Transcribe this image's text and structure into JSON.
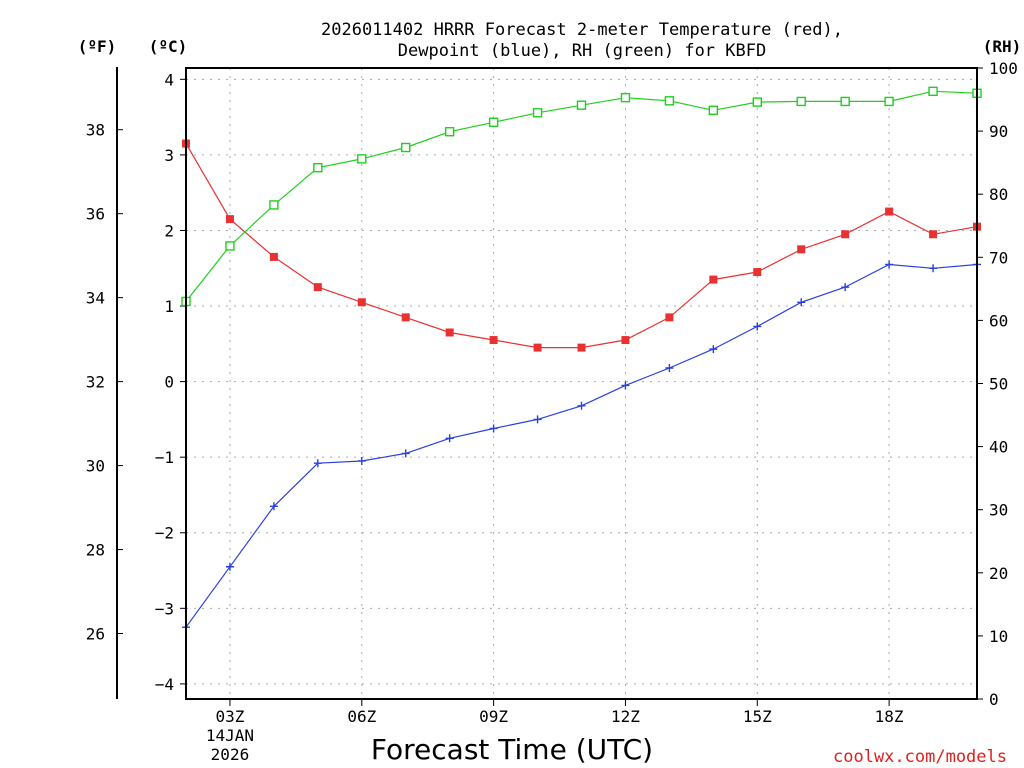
{
  "chart_data": {
    "type": "line",
    "title_line1": "2026011402 HRRR Forecast 2-meter Temperature (red),",
    "title_line2": "Dewpoint (blue), RH (green) for KBFD",
    "unit_f": "(ºF)",
    "unit_c": "(ºC)",
    "unit_rh": "(RH)",
    "xlabel": "Forecast Time (UTC)",
    "credit": "coolwx.com/models",
    "x_hours": [
      2,
      3,
      4,
      5,
      6,
      7,
      8,
      9,
      10,
      11,
      12,
      13,
      14,
      15,
      16,
      17,
      18,
      19,
      20
    ],
    "xlim": [
      2,
      20
    ],
    "x_ticks": [
      {
        "hour": 3,
        "label": "03Z",
        "date1": "14JAN",
        "date2": "2026"
      },
      {
        "hour": 6,
        "label": "06Z"
      },
      {
        "hour": 9,
        "label": "09Z"
      },
      {
        "hour": 12,
        "label": "12Z"
      },
      {
        "hour": 15,
        "label": "15Z"
      },
      {
        "hour": 18,
        "label": "18Z"
      }
    ],
    "ylim_c": [
      -4.2,
      4.15
    ],
    "ylim_rh": [
      0,
      100
    ],
    "c_ticks": [
      -4,
      -3,
      -2,
      -1,
      0,
      1,
      2,
      3,
      4
    ],
    "f_ticks": [
      26,
      28,
      30,
      32,
      34,
      36,
      38
    ],
    "rh_ticks": [
      0,
      10,
      20,
      30,
      40,
      50,
      60,
      70,
      80,
      90,
      100
    ],
    "series": [
      {
        "name": "Temperature",
        "color": "#e83232",
        "marker": "filled-square",
        "values": [
          3.15,
          2.15,
          1.65,
          1.25,
          1.05,
          0.85,
          0.65,
          0.55,
          0.45,
          0.45,
          0.55,
          0.85,
          1.35,
          1.45,
          1.75,
          1.95,
          2.25,
          1.95,
          2.05
        ]
      },
      {
        "name": "Dewpoint",
        "color": "#2a3fe0",
        "marker": "plus",
        "values": [
          -3.25,
          -2.45,
          -1.65,
          -1.08,
          -1.05,
          -0.95,
          -0.75,
          -0.62,
          -0.5,
          -0.32,
          -0.05,
          0.18,
          0.43,
          0.73,
          1.05,
          1.25,
          1.55,
          1.5,
          1.55
        ]
      },
      {
        "name": "RH",
        "color": "#1ed01e",
        "marker": "open-square",
        "axis": "rh",
        "values": [
          63,
          71.8,
          78.3,
          84.2,
          85.6,
          87.4,
          89.9,
          91.4,
          92.9,
          94.1,
          95.3,
          94.8,
          93.3,
          94.6,
          94.7,
          94.7,
          94.7,
          96.3,
          96
        ]
      }
    ]
  }
}
